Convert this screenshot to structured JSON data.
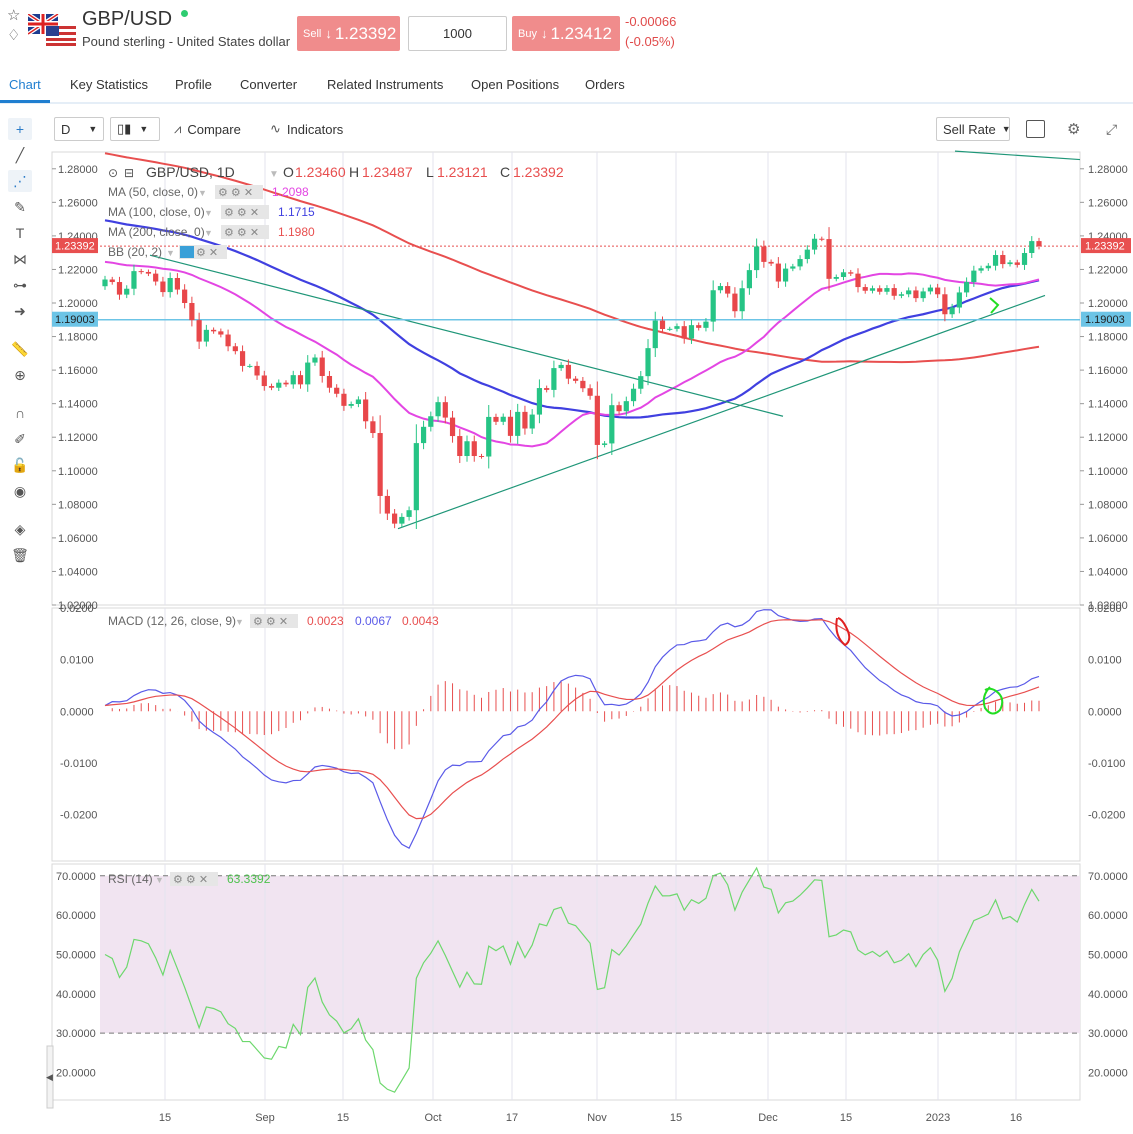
{
  "header": {
    "symbol": "GBP/USD",
    "description": "Pound sterling - United States dollar",
    "sell_label": "Sell",
    "sell_arrow": "↓",
    "sell_price": "1.23392",
    "quantity": "1000",
    "buy_label": "Buy",
    "buy_arrow": "↓",
    "buy_price": "1.23412",
    "change_abs": "-0.00066",
    "change_pct": "(-0.05%)",
    "icons": [
      "star-icon",
      "alert-icon",
      "flag-icon"
    ]
  },
  "tabs": [
    "Chart",
    "Key Statistics",
    "Profile",
    "Converter",
    "Related Instruments",
    "Open Positions",
    "Orders"
  ],
  "toolbar": {
    "interval": "D",
    "compare": "Compare",
    "indicators": "Indicators",
    "rate_select": "Sell Rate"
  },
  "colors": {
    "up": "#26c485",
    "down": "#e8474a",
    "ma50": "#e346e3",
    "ma100": "#4040e0",
    "ma200": "#e84f4f",
    "price_line": "#e84f4f",
    "level_line": "#6cc4e6",
    "trendline": "#1f9678",
    "macd_line": "#5a5ae8",
    "signal_line": "#e84f4f",
    "rsi_line": "#6dd86d",
    "rsi_band": "#f1e4f1",
    "accent": "#1f7ed0"
  },
  "legend": {
    "title": "GBP/USD, 1D",
    "o_label": "O",
    "open": "1.23460",
    "h_label": "H",
    "high": "1.23487",
    "l_label": "L",
    "low": "1.23121",
    "c_label": "C",
    "close": "1.23392",
    "ma50_label": "MA (50, close, 0)",
    "ma50_value": "1.2098",
    "ma100_label": "MA (100, close, 0)",
    "ma100_value": "1.1715",
    "ma200_label": "MA (200, close, 0)",
    "ma200_value": "1.1980",
    "bb_label": "BB (20, 2)",
    "macd_label": "MACD (12, 26, close, 9)",
    "macd_hist": "0.0023",
    "macd_value": "0.0067",
    "macd_signal": "0.0043",
    "rsi_label": "RSI (14)",
    "rsi_value": "63.3392"
  },
  "price_badges": {
    "current": "1.23392",
    "level": "1.19003"
  },
  "chart_data": [
    {
      "type": "candlestick",
      "title": "GBP/USD, 1D",
      "x_ticks": [
        "15",
        "Sep",
        "15",
        "Oct",
        "17",
        "Nov",
        "15",
        "Dec",
        "15",
        "2023",
        "16"
      ],
      "y_ticks": [
        "1.28000",
        "1.26000",
        "1.24000",
        "1.22000",
        "1.20000",
        "1.18000",
        "1.16000",
        "1.14000",
        "1.12000",
        "1.10000",
        "1.08000",
        "1.06000",
        "1.04000",
        "1.02000"
      ],
      "ylim": [
        1.02,
        1.29
      ],
      "close": [
        1.214,
        1.2125,
        1.205,
        1.2085,
        1.219,
        1.2185,
        1.2175,
        1.2128,
        1.2065,
        1.2149,
        1.208,
        1.2,
        1.1898,
        1.177,
        1.184,
        1.1831,
        1.1812,
        1.1742,
        1.1713,
        1.1625,
        1.1625,
        1.1568,
        1.1505,
        1.1495,
        1.1525,
        1.1515,
        1.157,
        1.1515,
        1.1645,
        1.1675,
        1.1565,
        1.1495,
        1.1459,
        1.1387,
        1.1398,
        1.1425,
        1.1295,
        1.1225,
        1.085,
        1.0745,
        1.0685,
        1.0725,
        1.0765,
        1.1165,
        1.1262,
        1.1325,
        1.1409,
        1.1317,
        1.1207,
        1.1088,
        1.1176,
        1.1088,
        1.1085,
        1.1321,
        1.1292,
        1.1322,
        1.1208,
        1.1351,
        1.1252,
        1.1335,
        1.1493,
        1.1482,
        1.1612,
        1.1631,
        1.1549,
        1.1536,
        1.1492,
        1.1447,
        1.1154,
        1.1163,
        1.1391,
        1.1355,
        1.1415,
        1.1489,
        1.1564,
        1.1731,
        1.1895,
        1.1845,
        1.1846,
        1.1862,
        1.1788,
        1.1868,
        1.1852,
        1.1889,
        1.2076,
        1.2101,
        1.2056,
        1.1951,
        1.2088,
        1.2196,
        1.2337,
        1.2245,
        1.2235,
        1.2128,
        1.2205,
        1.2218,
        1.2262,
        1.2318,
        1.2383,
        1.2381,
        1.2144,
        1.2155,
        1.2183,
        1.2175,
        1.2095,
        1.2073,
        1.2088,
        1.2067,
        1.2089,
        1.2043,
        1.2052,
        1.2075,
        1.2029,
        1.2069,
        1.2092,
        1.2052,
        1.1933,
        1.1973,
        1.2063,
        1.2125,
        1.2193,
        1.2207,
        1.2222,
        1.2286,
        1.2232,
        1.2242,
        1.2227,
        1.2298,
        1.2369,
        1.2339
      ],
      "series": [
        {
          "name": "MA (50, close, 0)",
          "last": 1.2098
        },
        {
          "name": "MA (100, close, 0)",
          "last": 1.1715
        },
        {
          "name": "MA (200, close, 0)",
          "last": 1.198
        }
      ],
      "horizontal_levels": [
        1.23392,
        1.19003
      ]
    },
    {
      "type": "line",
      "title": "MACD (12, 26, close, 9)",
      "y_ticks": [
        "0.0200",
        "0.0100",
        "0.0000",
        "-0.0100",
        "-0.0200"
      ],
      "ylim": [
        -0.029,
        0.02
      ],
      "series": [
        {
          "name": "MACD",
          "last": 0.0067
        },
        {
          "name": "Signal",
          "last": 0.0043
        },
        {
          "name": "Histogram",
          "last": 0.0023
        }
      ]
    },
    {
      "type": "line",
      "title": "RSI (14)",
      "y_ticks": [
        "70.0000",
        "60.0000",
        "50.0000",
        "40.0000",
        "30.0000",
        "20.0000"
      ],
      "ylim": [
        13,
        73
      ],
      "band": [
        30,
        70
      ],
      "series": [
        {
          "name": "RSI (14)",
          "last": 63.3392
        }
      ]
    }
  ]
}
